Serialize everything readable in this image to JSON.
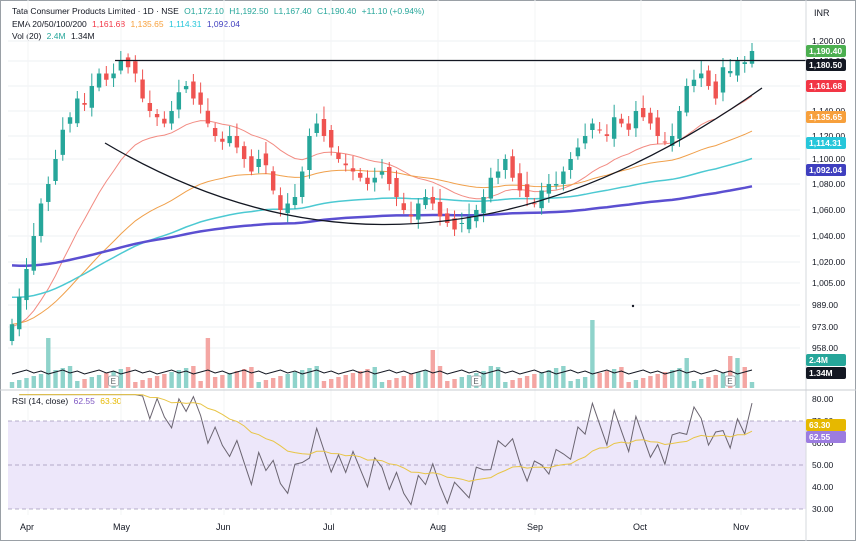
{
  "header": {
    "instrument": "Tata Consumer Products Limited · 1D · NSE",
    "ohlc": {
      "o": "O1,172.10",
      "h": "H1,192.50",
      "l": "L1,167.40",
      "c": "C1,190.40",
      "chg": "+11.10 (+0.94%)"
    },
    "ema_label": "EMA 20/50/100/200",
    "ema_values": [
      "1,161.68",
      "1,135.65",
      "1,114.31",
      "1,092.04"
    ],
    "vol_label": "Vol (20)",
    "vol_values": [
      "2.4M",
      "1.34M"
    ],
    "rsi_label": "RSI (14, close)",
    "rsi_values": [
      "62.55",
      "63.30"
    ]
  },
  "currency": "INR",
  "colors": {
    "up": "#26a69a",
    "down": "#ef5350",
    "ema20": "#f28b82",
    "ema50": "#f0a04b",
    "ema100": "#4cc9d2",
    "ema200": "#5b4fd1",
    "rsi": "#6a6470",
    "rsi_ma": "#e8c547",
    "rsi_band": "#ede7fa",
    "vol_ma": "#131722",
    "price_badge": "#4caf50",
    "resistance_badge": "#131722"
  },
  "chart_data": {
    "type": "candlestick",
    "price_axis": {
      "ticks": [
        "1,200.00",
        "1,180.00",
        "1,160.00",
        "1,140.00",
        "1,120.00",
        "1,100.00",
        "1,080.00",
        "1,060.00",
        "1,040.00",
        "1,020.00",
        "1,005.00",
        "989.00",
        "973.00",
        "958.00"
      ],
      "badges": [
        {
          "label": "1,190.40",
          "value": 1190.4,
          "color": "#4caf50"
        },
        {
          "label": "1,180.50",
          "value": 1180.5,
          "color": "#131722"
        },
        {
          "label": "1,161.68",
          "value": 1161.68,
          "color": "#f23645"
        },
        {
          "label": "1,135.65",
          "value": 1135.65,
          "color": "#f7a03c"
        },
        {
          "label": "1,114.31",
          "value": 1114.31,
          "color": "#26c6da"
        },
        {
          "label": "1,092.04",
          "value": 1092.04,
          "color": "#3f3fbf"
        }
      ]
    },
    "x_axis": {
      "months": [
        "Apr",
        "May",
        "Jun",
        "Jul",
        "Aug",
        "Sep",
        "Oct",
        "Nov"
      ]
    },
    "closes": [
      975,
      995,
      1015,
      1040,
      1065,
      1080,
      1100,
      1125,
      1135,
      1150,
      1145,
      1160,
      1170,
      1165,
      1170,
      1180,
      1175,
      1170,
      1150,
      1140,
      1135,
      1130,
      1140,
      1155,
      1160,
      1150,
      1145,
      1130,
      1120,
      1115,
      1120,
      1110,
      1100,
      1090,
      1100,
      1095,
      1075,
      1060,
      1065,
      1070,
      1090,
      1120,
      1130,
      1120,
      1110,
      1100,
      1095,
      1090,
      1085,
      1080,
      1085,
      1090,
      1080,
      1070,
      1060,
      1055,
      1065,
      1070,
      1065,
      1055,
      1050,
      1045,
      1050,
      1055,
      1060,
      1070,
      1085,
      1090,
      1100,
      1085,
      1075,
      1070,
      1065,
      1075,
      1080,
      1080,
      1090,
      1100,
      1110,
      1120,
      1130,
      1125,
      1120,
      1135,
      1130,
      1125,
      1140,
      1135,
      1130,
      1120,
      1115,
      1120,
      1140,
      1160,
      1165,
      1170,
      1160,
      1150,
      1175,
      1172,
      1180,
      1179,
      1190
    ],
    "ema": {
      "ema20": [
        973,
        1161.68
      ],
      "ema50": [
        975,
        1135.65
      ],
      "ema100": [
        995,
        1114.31
      ],
      "ema200": [
        1018,
        1092.04
      ]
    },
    "resistance": 1180.5,
    "volume": {
      "ma": "1.34M",
      "last": "2.4M",
      "earnings_markers": [
        "E",
        "E",
        "E"
      ]
    },
    "rsi": {
      "ticks": [
        "80.00",
        "70.00",
        "60.00",
        "50.00",
        "40.00",
        "30.00"
      ],
      "band": [
        30,
        70
      ],
      "last": 62.55,
      "ma_last": 63.3,
      "badges": [
        {
          "label": "63.30",
          "value": 63.3,
          "color": "#e6b800"
        },
        {
          "label": "62.55",
          "value": 62.55,
          "color": "#9c7ce0"
        }
      ]
    }
  }
}
